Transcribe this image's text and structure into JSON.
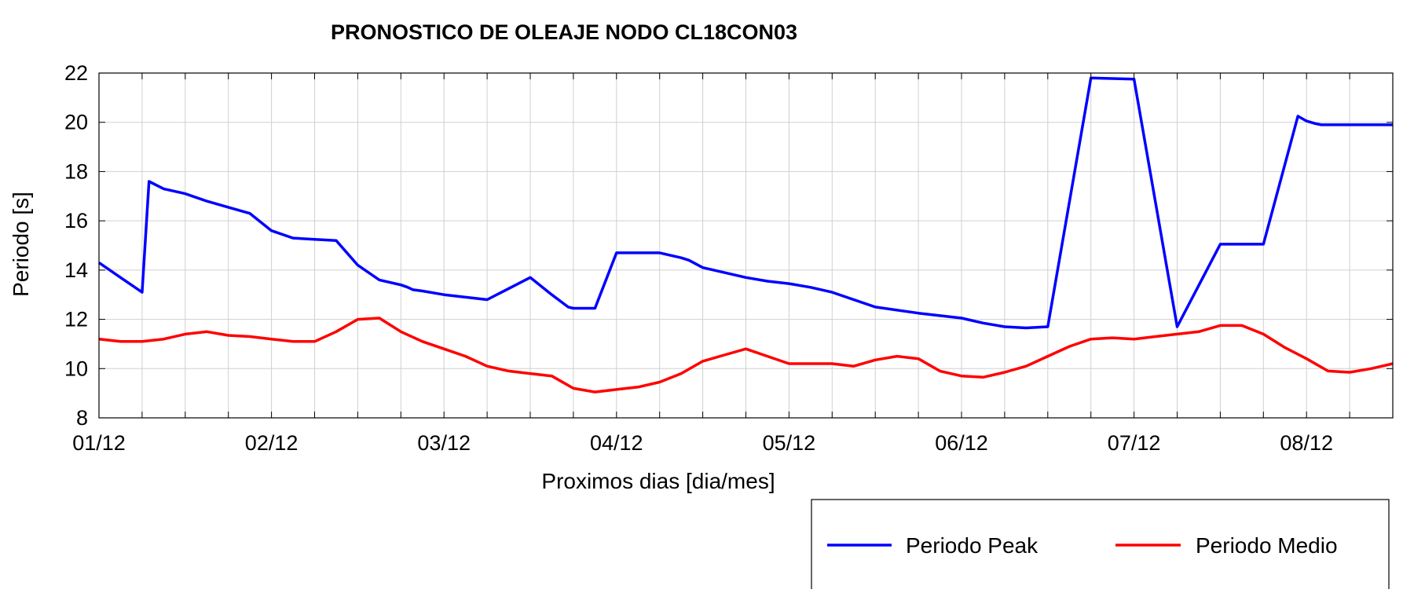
{
  "chart_data": {
    "type": "line",
    "title": "PRONOSTICO DE OLEAJE NODO CL18CON03",
    "xlabel": "Proximos dias [dia/mes]",
    "ylabel": "Periodo [s]",
    "ylim": [
      8,
      22
    ],
    "xlim": [
      0,
      7.5
    ],
    "x_unit": "days since 01/12",
    "xticks": [
      0,
      1,
      2,
      3,
      4,
      5,
      6,
      7
    ],
    "xticklabels": [
      "01/12",
      "02/12",
      "03/12",
      "04/12",
      "05/12",
      "06/12",
      "07/12",
      "08/12"
    ],
    "yticks": [
      8,
      10,
      12,
      14,
      16,
      18,
      20,
      22
    ],
    "grid": true,
    "legend_position": "bottom-right, outside plot",
    "series": [
      {
        "name": "Periodo Peak",
        "color": "#0000ff",
        "x": [
          0,
          0.125,
          0.25,
          0.29,
          0.375,
          0.5,
          0.625,
          0.75,
          0.875,
          1.0,
          1.125,
          1.25,
          1.375,
          1.5,
          1.625,
          1.75,
          1.79,
          1.82,
          1.875,
          2.0,
          2.25,
          2.5,
          2.625,
          2.72,
          2.75,
          2.875,
          3.0,
          3.125,
          3.25,
          3.375,
          3.42,
          3.5,
          3.75,
          3.875,
          4.0,
          4.125,
          4.25,
          4.5,
          4.75,
          5.0,
          5.125,
          5.25,
          5.375,
          5.5,
          5.75,
          6.0,
          6.25,
          6.5,
          6.75,
          6.95,
          7.0,
          7.05,
          7.085,
          7.12,
          7.17,
          7.25,
          7.32,
          7.375,
          7.45,
          7.5
        ],
        "y": [
          14.3,
          13.7,
          13.1,
          17.6,
          17.3,
          17.1,
          16.8,
          16.55,
          16.3,
          15.6,
          15.3,
          15.25,
          15.2,
          14.2,
          13.6,
          13.4,
          13.3,
          13.2,
          13.15,
          13.0,
          12.8,
          13.7,
          13.0,
          12.5,
          12.45,
          12.45,
          14.7,
          14.7,
          14.7,
          14.5,
          14.4,
          14.1,
          13.7,
          13.55,
          13.45,
          13.3,
          13.1,
          12.5,
          12.25,
          12.05,
          11.85,
          11.7,
          11.65,
          11.7,
          21.8,
          21.75,
          11.7,
          15.05,
          15.05,
          20.25,
          20.05,
          19.95,
          19.9,
          19.9,
          19.9,
          19.9,
          19.9,
          19.9,
          19.9,
          19.9
        ]
      },
      {
        "name": "Periodo Medio",
        "color": "#ff0000",
        "x": [
          0,
          0.125,
          0.25,
          0.375,
          0.5,
          0.625,
          0.75,
          0.875,
          1.0,
          1.125,
          1.25,
          1.375,
          1.5,
          1.625,
          1.75,
          1.875,
          2.0,
          2.125,
          2.25,
          2.375,
          2.5,
          2.625,
          2.75,
          2.875,
          3.0,
          3.125,
          3.25,
          3.375,
          3.5,
          3.625,
          3.75,
          3.875,
          4.0,
          4.125,
          4.25,
          4.375,
          4.5,
          4.625,
          4.75,
          4.875,
          5.0,
          5.125,
          5.25,
          5.375,
          5.5,
          5.625,
          5.75,
          5.875,
          6.0,
          6.125,
          6.25,
          6.375,
          6.5,
          6.625,
          6.75,
          6.875,
          7.0,
          7.125,
          7.25,
          7.375,
          7.5
        ],
        "y": [
          11.2,
          11.1,
          11.1,
          11.2,
          11.4,
          11.5,
          11.35,
          11.3,
          11.2,
          11.1,
          11.1,
          11.5,
          12.0,
          12.05,
          11.5,
          11.1,
          10.8,
          10.5,
          10.1,
          9.9,
          9.8,
          9.7,
          9.2,
          9.05,
          9.15,
          9.25,
          9.45,
          9.8,
          10.3,
          10.55,
          10.8,
          10.5,
          10.2,
          10.2,
          10.2,
          10.1,
          10.35,
          10.5,
          10.4,
          9.9,
          9.7,
          9.65,
          9.85,
          10.1,
          10.5,
          10.9,
          11.2,
          11.25,
          11.2,
          11.3,
          11.4,
          11.5,
          11.75,
          11.75,
          11.4,
          10.85,
          10.4,
          9.9,
          9.85,
          10.0,
          10.2
        ]
      }
    ]
  }
}
